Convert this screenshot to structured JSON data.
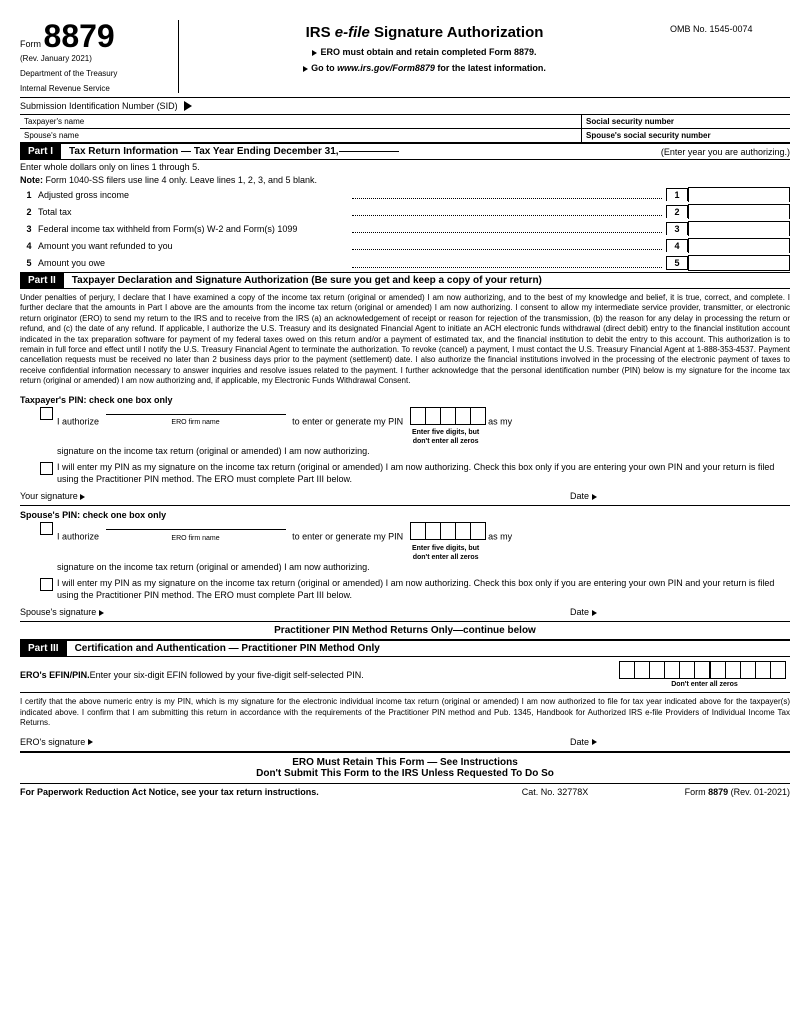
{
  "header": {
    "form_label": "Form",
    "form_number": "8879",
    "revision": "(Rev. January 2021)",
    "department": "Department of the Treasury",
    "service": "Internal Revenue Service",
    "title_prefix": "IRS ",
    "title_italic": "e-file",
    "title_suffix": " Signature Authorization",
    "sub1": "ERO must obtain and retain completed Form 8879.",
    "sub2_prefix": "Go to ",
    "sub2_url": "www.irs.gov/Form8879",
    "sub2_suffix": " for the latest information.",
    "omb": "OMB No. 1545-0074"
  },
  "sid": {
    "label": "Submission Identification Number (SID)"
  },
  "names": {
    "taxpayer_label": "Taxpayer's name",
    "ssn_label": "Social security number",
    "spouse_label": "Spouse's name",
    "spouse_ssn_label": "Spouse's social security number"
  },
  "part1": {
    "label": "Part I",
    "title": "Tax Return Information — Tax Year Ending December 31,",
    "extra": "(Enter year you are authorizing.)",
    "instruction": "Enter whole dollars only on lines 1 through 5.",
    "note_prefix": "Note:",
    "note": " Form 1040-SS filers use line 4 only. Leave lines 1, 2, 3, and 5 blank.",
    "lines": [
      {
        "num": "1",
        "text": "Adjusted gross income"
      },
      {
        "num": "2",
        "text": "Total tax"
      },
      {
        "num": "3",
        "text": "Federal income tax withheld from Form(s) W-2 and Form(s) 1099"
      },
      {
        "num": "4",
        "text": "Amount you want refunded to you"
      },
      {
        "num": "5",
        "text": "Amount you owe"
      }
    ]
  },
  "part2": {
    "label": "Part II",
    "title": "Taxpayer Declaration and Signature Authorization (Be sure you get and keep a copy of your return)",
    "declaration": "Under penalties of perjury, I declare that I have examined a copy of the income tax return (original or amended) I am now authorizing, and to the best of my knowledge and belief, it is true, correct, and complete. I further declare that the amounts in Part I above are the amounts from the income tax return (original or amended) I am now authorizing. I consent to allow my intermediate service provider, transmitter, or electronic return originator (ERO) to send my return to the IRS and to receive from the IRS (a) an acknowledgement of receipt or reason for rejection of the transmission, (b) the reason for any delay in processing the return or refund, and (c) the date of any refund. If applicable, I authorize the U.S. Treasury and its designated Financial Agent to initiate an ACH electronic funds withdrawal (direct debit) entry to the financial institution account indicated in the tax preparation software for payment of my federal taxes owed on this return and/or a payment of estimated tax, and the financial institution to debit the entry to this account. This authorization is to remain in full force and effect until I notify the U.S. Treasury Financial Agent to terminate the authorization. To revoke (cancel) a payment, I must contact the U.S. Treasury Financial Agent at 1-888-353-4537. Payment cancellation requests must be received no later than 2 business days prior to the payment (settlement) date. I also authorize the financial institutions involved in the processing of the electronic payment of taxes to receive confidential information necessary to answer inquiries and resolve issues related to the payment. I further acknowledge that the personal identification number (PIN) below is my signature for the income tax return (original or amended) I am now authorizing and, if applicable, my Electronic Funds Withdrawal Consent.",
    "taxpayer_pin_title": "Taxpayer's PIN: check one box only",
    "authorize_text": "I authorize",
    "ero_firm_label": "ERO firm name",
    "enter_pin_text": "to enter or generate my PIN",
    "as_my": "as my",
    "pin_hint": "Enter five digits, but don't enter all zeros",
    "sig_continuation": "signature on the income tax return (original or amended) I am now authorizing.",
    "own_pin_text": "I will enter my PIN as my signature on the income tax return (original or amended) I am now authorizing. Check this box only if you are entering your own PIN and your return is filed using the Practitioner PIN method. The ERO must complete Part III below.",
    "your_sig": "Your signature",
    "date": "Date",
    "spouse_pin_title": "Spouse's PIN: check one box only",
    "spouse_sig": "Spouse's signature",
    "practitioner_only": "Practitioner PIN Method Returns Only—continue below"
  },
  "part3": {
    "label": "Part III",
    "title": "Certification and Authentication — Practitioner PIN Method Only",
    "efin_label": "ERO's EFIN/PIN.",
    "efin_text": " Enter your six-digit EFIN followed by your five-digit self-selected PIN.",
    "efin_hint": "Don't enter all zeros",
    "cert": "I certify that the above numeric entry is my PIN, which is my signature for the electronic individual income tax return (original or amended) I am now authorized to file for tax year indicated above for the taxpayer(s) indicated above. I confirm that I am submitting this return in accordance with the requirements of the Practitioner PIN method and Pub. 1345, Handbook for Authorized IRS e-file Providers of Individual Income Tax Returns.",
    "ero_sig": "ERO's signature",
    "retain1": "ERO Must Retain This Form — See Instructions",
    "retain2": "Don't Submit This Form to the IRS Unless Requested To Do So"
  },
  "footer": {
    "left": "For Paperwork Reduction Act Notice, see your tax return instructions.",
    "center": "Cat. No. 32778X",
    "right_prefix": "Form ",
    "right_num": "8879",
    "right_suffix": " (Rev. 01-2021)"
  }
}
